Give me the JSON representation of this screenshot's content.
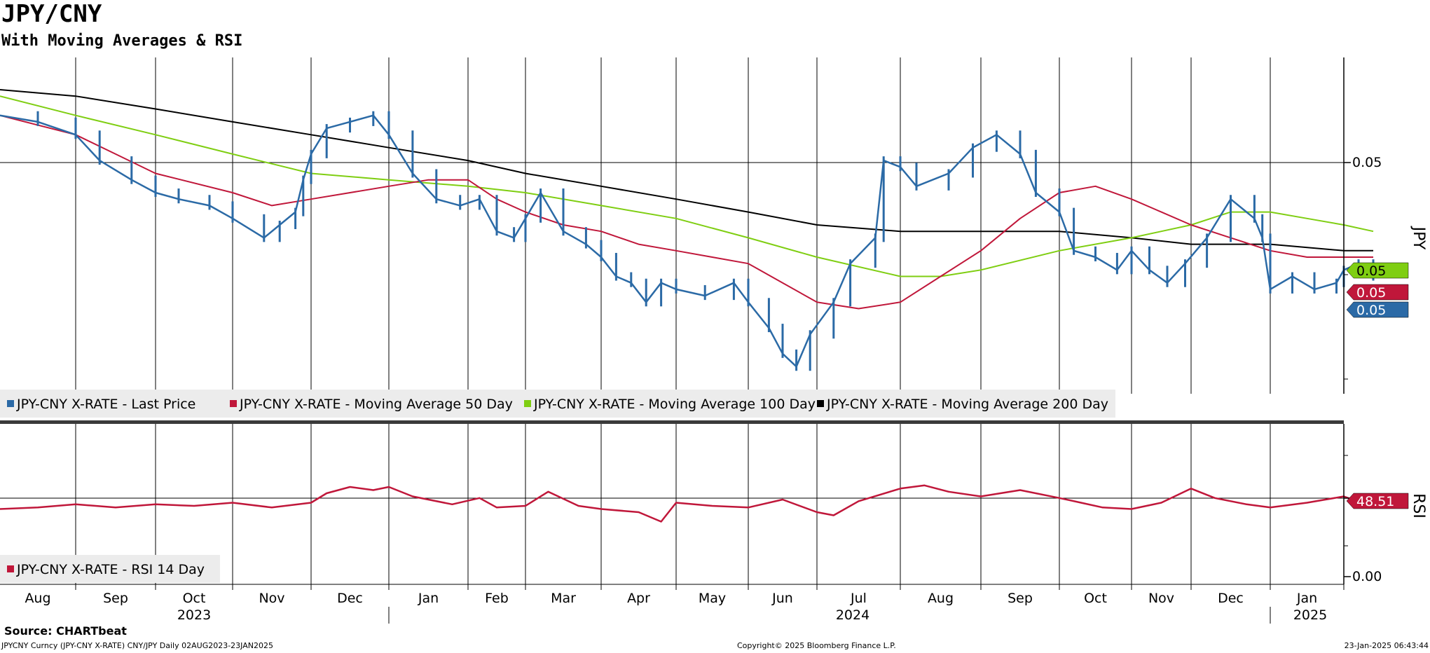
{
  "title": "JPY/CNY",
  "subtitle": "With Moving Averages & RSI",
  "colors": {
    "price": "#2b6aa6",
    "ma50": "#c0173a",
    "ma100": "#7fce12",
    "ma200": "#000000",
    "rsi": "#c0173a",
    "legend_bg": "#ececec",
    "separator": "#3a3a3a"
  },
  "chart_data": [
    {
      "type": "line",
      "panel": "price",
      "y_axis_label": "JPY",
      "y_ticks": [
        "0.05"
      ],
      "price_labels": [
        {
          "text": "0.05",
          "color": "#7fce12"
        },
        {
          "text": "0.05",
          "color": "#c0173a"
        },
        {
          "text": "0.05",
          "color": "#2b6aa6"
        }
      ],
      "legend": [
        {
          "label": "JPY-CNY X-RATE - Last Price",
          "color": "#2b6aa6"
        },
        {
          "label": "JPY-CNY X-RATE - Moving Average 50 Day",
          "color": "#c0173a"
        },
        {
          "label": "JPY-CNY X-RATE - Moving Average 100 Day",
          "color": "#7fce12"
        },
        {
          "label": "JPY-CNY X-RATE - Moving Average 200 Day",
          "color": "#000000"
        }
      ],
      "x_months": [
        {
          "label": "Aug",
          "year": "2023"
        },
        {
          "label": "Sep",
          "year": "2023"
        },
        {
          "label": "Oct",
          "year": "2023"
        },
        {
          "label": "Nov",
          "year": "2023"
        },
        {
          "label": "Dec",
          "year": "2023"
        },
        {
          "label": "Jan",
          "year": "2024"
        },
        {
          "label": "Feb",
          "year": "2024"
        },
        {
          "label": "Mar",
          "year": "2024"
        },
        {
          "label": "Apr",
          "year": "2024"
        },
        {
          "label": "May",
          "year": "2024"
        },
        {
          "label": "Jun",
          "year": "2024"
        },
        {
          "label": "Jul",
          "year": "2024"
        },
        {
          "label": "Aug",
          "year": "2024"
        },
        {
          "label": "Sep",
          "year": "2024"
        },
        {
          "label": "Oct",
          "year": "2024"
        },
        {
          "label": "Nov",
          "year": "2024"
        },
        {
          "label": "Dec",
          "year": "2024"
        },
        {
          "label": "Jan",
          "year": "2025"
        }
      ],
      "x_years": [
        "2023",
        "2024",
        "2025"
      ],
      "series": [
        {
          "name": "JPY-CNY X-RATE - Last Price",
          "color": "#2b6aa6",
          "points": [
            [
              0,
              0.0503
            ],
            [
              0.5,
              0.0502
            ],
            [
              1,
              0.05
            ],
            [
              1.3,
              0.0496
            ],
            [
              1.7,
              0.0493
            ],
            [
              2,
              0.0491
            ],
            [
              2.3,
              0.049
            ],
            [
              2.7,
              0.0489
            ],
            [
              3,
              0.0487
            ],
            [
              3.4,
              0.0484
            ],
            [
              3.6,
              0.0486
            ],
            [
              3.8,
              0.0488
            ],
            [
              3.9,
              0.0493
            ],
            [
              4,
              0.0497
            ],
            [
              4.2,
              0.0501
            ],
            [
              4.5,
              0.0502
            ],
            [
              4.8,
              0.0503
            ],
            [
              5,
              0.05
            ],
            [
              5.3,
              0.0494
            ],
            [
              5.6,
              0.049
            ],
            [
              5.9,
              0.0489
            ],
            [
              6.2,
              0.049
            ],
            [
              6.5,
              0.0485
            ],
            [
              6.8,
              0.0484
            ],
            [
              7,
              0.0487
            ],
            [
              7.2,
              0.0491
            ],
            [
              7.5,
              0.0485
            ],
            [
              7.8,
              0.0483
            ],
            [
              8,
              0.0481
            ],
            [
              8.2,
              0.0478
            ],
            [
              8.4,
              0.0477
            ],
            [
              8.6,
              0.0474
            ],
            [
              8.8,
              0.0477
            ],
            [
              9,
              0.0476
            ],
            [
              9.4,
              0.0475
            ],
            [
              9.8,
              0.0477
            ],
            [
              10,
              0.0474
            ],
            [
              10.3,
              0.047
            ],
            [
              10.5,
              0.0466
            ],
            [
              10.7,
              0.0464
            ],
            [
              10.9,
              0.0469
            ],
            [
              11.2,
              0.0474
            ],
            [
              11.4,
              0.048
            ],
            [
              11.7,
              0.0484
            ],
            [
              11.8,
              0.0496
            ],
            [
              12,
              0.0495
            ],
            [
              12.2,
              0.0492
            ],
            [
              12.6,
              0.0494
            ],
            [
              12.9,
              0.0498
            ],
            [
              13.2,
              0.05
            ],
            [
              13.5,
              0.0497
            ],
            [
              13.7,
              0.0491
            ],
            [
              14,
              0.0488
            ],
            [
              14.2,
              0.0482
            ],
            [
              14.5,
              0.0481
            ],
            [
              14.8,
              0.0479
            ],
            [
              15,
              0.0482
            ],
            [
              15.3,
              0.0479
            ],
            [
              15.6,
              0.0477
            ],
            [
              15.9,
              0.048
            ],
            [
              16.2,
              0.0484
            ],
            [
              16.5,
              0.049
            ],
            [
              16.8,
              0.0487
            ],
            [
              16.9,
              0.0484
            ],
            [
              17,
              0.0476
            ],
            [
              17.3,
              0.0478
            ],
            [
              17.6,
              0.0476
            ],
            [
              17.9,
              0.0477
            ],
            [
              18,
              0.0479
            ],
            [
              18.2,
              0.048
            ],
            [
              18.4,
              0.0478
            ]
          ]
        },
        {
          "name": "JPY-CNY X-RATE - Moving Average 50 Day",
          "color": "#c0173a",
          "points": [
            [
              0,
              0.0503
            ],
            [
              1,
              0.05
            ],
            [
              1.5,
              0.0497
            ],
            [
              2,
              0.0494
            ],
            [
              3,
              0.0491
            ],
            [
              3.5,
              0.0489
            ],
            [
              4,
              0.049
            ],
            [
              5,
              0.0492
            ],
            [
              5.5,
              0.0493
            ],
            [
              6,
              0.0493
            ],
            [
              6.5,
              0.049
            ],
            [
              7,
              0.0488
            ],
            [
              7.5,
              0.0486
            ],
            [
              8,
              0.0485
            ],
            [
              8.5,
              0.0483
            ],
            [
              9,
              0.0482
            ],
            [
              9.5,
              0.0481
            ],
            [
              10,
              0.048
            ],
            [
              10.5,
              0.0477
            ],
            [
              11,
              0.0474
            ],
            [
              11.5,
              0.0473
            ],
            [
              12,
              0.0474
            ],
            [
              12.5,
              0.0478
            ],
            [
              13,
              0.0482
            ],
            [
              13.5,
              0.0487
            ],
            [
              14,
              0.0491
            ],
            [
              14.5,
              0.0492
            ],
            [
              15,
              0.049
            ],
            [
              15.5,
              0.0488
            ],
            [
              16,
              0.0486
            ],
            [
              16.5,
              0.0484
            ],
            [
              17,
              0.0482
            ],
            [
              17.5,
              0.0481
            ],
            [
              18,
              0.0481
            ],
            [
              18.4,
              0.0481
            ]
          ]
        },
        {
          "name": "JPY-CNY X-RATE - Moving Average 100 Day",
          "color": "#7fce12",
          "points": [
            [
              0,
              0.0506
            ],
            [
              1,
              0.0503
            ],
            [
              2,
              0.05
            ],
            [
              3,
              0.0497
            ],
            [
              4,
              0.0494
            ],
            [
              5,
              0.0493
            ],
            [
              6,
              0.0492
            ],
            [
              7,
              0.0491
            ],
            [
              8,
              0.0489
            ],
            [
              9,
              0.0487
            ],
            [
              10,
              0.0484
            ],
            [
              11,
              0.0481
            ],
            [
              12,
              0.0478
            ],
            [
              12.5,
              0.0478
            ],
            [
              13,
              0.0479
            ],
            [
              14,
              0.0482
            ],
            [
              15,
              0.0484
            ],
            [
              15.5,
              0.0485
            ],
            [
              16,
              0.0486
            ],
            [
              16.5,
              0.0488
            ],
            [
              17,
              0.0488
            ],
            [
              17.5,
              0.0487
            ],
            [
              18,
              0.0486
            ],
            [
              18.4,
              0.0485
            ]
          ]
        },
        {
          "name": "JPY-CNY X-RATE - Moving Average 200 Day",
          "color": "#000000",
          "points": [
            [
              0,
              0.0507
            ],
            [
              1,
              0.0506
            ],
            [
              2,
              0.0504
            ],
            [
              3,
              0.0502
            ],
            [
              4,
              0.05
            ],
            [
              5,
              0.0498
            ],
            [
              6,
              0.0496
            ],
            [
              7,
              0.0494
            ],
            [
              8,
              0.0492
            ],
            [
              9,
              0.049
            ],
            [
              10,
              0.0488
            ],
            [
              11,
              0.0486
            ],
            [
              12,
              0.0485
            ],
            [
              13,
              0.0485
            ],
            [
              14,
              0.0485
            ],
            [
              15,
              0.0484
            ],
            [
              16,
              0.0483
            ],
            [
              17,
              0.0483
            ],
            [
              18,
              0.0482
            ],
            [
              18.4,
              0.0482
            ]
          ]
        }
      ]
    },
    {
      "type": "line",
      "panel": "rsi",
      "y_axis_label": "RSI",
      "y_ticks": [
        "0.00"
      ],
      "last_value_label": "48.51",
      "legend": [
        {
          "label": "JPY-CNY X-RATE - RSI 14 Day",
          "color": "#c0173a"
        }
      ],
      "series": [
        {
          "name": "JPY-CNY X-RATE - RSI 14 Day",
          "color": "#c0173a",
          "points": [
            [
              0,
              46
            ],
            [
              0.5,
              47
            ],
            [
              1,
              49
            ],
            [
              1.5,
              47
            ],
            [
              2,
              49
            ],
            [
              2.5,
              48
            ],
            [
              3,
              50
            ],
            [
              3.5,
              47
            ],
            [
              4,
              50
            ],
            [
              4.2,
              56
            ],
            [
              4.5,
              60
            ],
            [
              4.8,
              58
            ],
            [
              5,
              60
            ],
            [
              5.3,
              54
            ],
            [
              5.8,
              49
            ],
            [
              6.2,
              53
            ],
            [
              6.5,
              47
            ],
            [
              7,
              48
            ],
            [
              7.3,
              57
            ],
            [
              7.7,
              48
            ],
            [
              8,
              46
            ],
            [
              8.5,
              44
            ],
            [
              8.8,
              38
            ],
            [
              9,
              50
            ],
            [
              9.5,
              48
            ],
            [
              10,
              47
            ],
            [
              10.5,
              52
            ],
            [
              11,
              44
            ],
            [
              11.2,
              42
            ],
            [
              11.5,
              51
            ],
            [
              12,
              59
            ],
            [
              12.3,
              61
            ],
            [
              12.6,
              57
            ],
            [
              13,
              54
            ],
            [
              13.5,
              58
            ],
            [
              14,
              53
            ],
            [
              14.3,
              50
            ],
            [
              14.6,
              47
            ],
            [
              15,
              46
            ],
            [
              15.5,
              50
            ],
            [
              16,
              59
            ],
            [
              16.3,
              53
            ],
            [
              16.7,
              49
            ],
            [
              17,
              47
            ],
            [
              17.5,
              50
            ],
            [
              18,
              54
            ],
            [
              18.3,
              49
            ],
            [
              18.5,
              48.51
            ]
          ]
        }
      ]
    }
  ],
  "footer": {
    "source": "Source: CHARTbeat",
    "left": "JPYCNY Curncy (JPY-CNY X-RATE) CNY/JPY  Daily 02AUG2023-23JAN2025",
    "middle": "Copyright© 2025 Bloomberg Finance L.P.",
    "right": "23-Jan-2025 06:43:44"
  }
}
